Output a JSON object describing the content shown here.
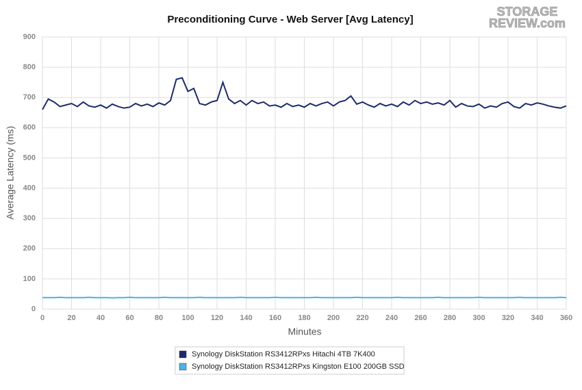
{
  "watermark": [
    "STORAGE",
    "REVIEW.com"
  ],
  "chart_data": {
    "type": "line",
    "title": "Preconditioning Curve - Web Server [Avg Latency]",
    "x_label": "Minutes",
    "y_label": "Average Latency (ms)",
    "x": [
      0,
      4,
      8,
      12,
      16,
      20,
      24,
      28,
      32,
      36,
      40,
      44,
      48,
      52,
      56,
      60,
      64,
      68,
      72,
      76,
      80,
      84,
      88,
      92,
      96,
      100,
      104,
      108,
      112,
      116,
      120,
      124,
      128,
      132,
      136,
      140,
      144,
      148,
      152,
      156,
      160,
      164,
      168,
      172,
      176,
      180,
      184,
      188,
      192,
      196,
      200,
      204,
      208,
      212,
      216,
      220,
      224,
      228,
      232,
      236,
      240,
      244,
      248,
      252,
      256,
      260,
      264,
      268,
      272,
      276,
      280,
      284,
      288,
      292,
      296,
      300,
      304,
      308,
      312,
      316,
      320,
      324,
      328,
      332,
      336,
      340,
      344,
      348,
      352,
      356,
      360
    ],
    "series": [
      {
        "name": "Synology DiskStation RS3412RPxs Hitachi 4TB 7K400",
        "color": "#1b2a6b",
        "values": [
          660,
          695,
          685,
          670,
          675,
          680,
          670,
          685,
          672,
          668,
          675,
          665,
          678,
          670,
          665,
          668,
          680,
          672,
          678,
          670,
          682,
          675,
          690,
          760,
          765,
          720,
          730,
          680,
          675,
          685,
          690,
          750,
          695,
          680,
          690,
          675,
          690,
          680,
          685,
          672,
          675,
          668,
          680,
          670,
          675,
          668,
          680,
          672,
          680,
          685,
          672,
          685,
          690,
          705,
          678,
          685,
          675,
          668,
          680,
          672,
          678,
          670,
          685,
          675,
          690,
          680,
          685,
          678,
          682,
          675,
          690,
          668,
          680,
          672,
          670,
          678,
          665,
          672,
          668,
          680,
          685,
          670,
          665,
          680,
          675,
          682,
          678,
          672,
          668,
          665,
          672
        ]
      },
      {
        "name": "Synology DiskStation RS3412RPxs Kingston E100 200GB SSD",
        "color": "#4db3e6",
        "values": [
          38,
          38,
          38,
          39,
          38,
          38,
          38,
          38,
          39,
          38,
          38,
          38,
          37,
          38,
          38,
          39,
          38,
          38,
          38,
          38,
          38,
          39,
          38,
          38,
          38,
          38,
          38,
          39,
          38,
          38,
          38,
          38,
          38,
          38,
          39,
          38,
          38,
          38,
          38,
          38,
          39,
          38,
          38,
          38,
          38,
          38,
          38,
          39,
          38,
          38,
          38,
          38,
          38,
          38,
          39,
          38,
          38,
          38,
          38,
          38,
          38,
          39,
          38,
          38,
          38,
          38,
          38,
          38,
          39,
          38,
          38,
          38,
          38,
          38,
          38,
          39,
          38,
          38,
          38,
          38,
          38,
          38,
          39,
          38,
          38,
          38,
          38,
          38,
          38,
          39,
          38
        ]
      }
    ],
    "xlim": [
      0,
      360
    ],
    "xticks": [
      0,
      20,
      40,
      60,
      80,
      100,
      120,
      140,
      160,
      180,
      200,
      220,
      240,
      260,
      280,
      300,
      320,
      340,
      360
    ],
    "ylim": [
      0,
      900
    ],
    "yticks": [
      0,
      100,
      200,
      300,
      400,
      500,
      600,
      700,
      800,
      900
    ],
    "grid": true
  }
}
